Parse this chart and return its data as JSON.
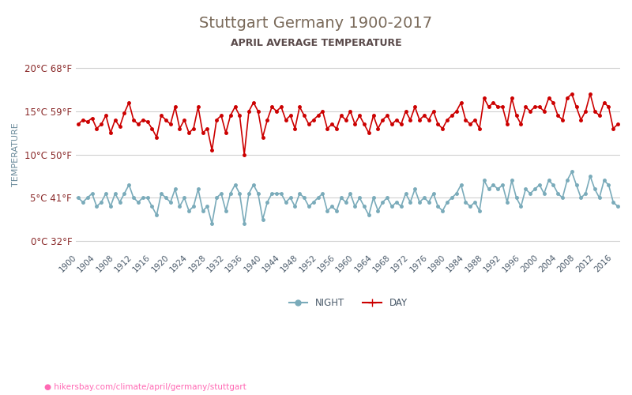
{
  "title": "Stuttgart Germany 1900-2017",
  "subtitle": "APRIL AVERAGE TEMPERATURE",
  "ylabel": "TEMPERATURE",
  "url_text": "hikersbay.com/climate/april/germany/stuttgart",
  "years": [
    1900,
    1901,
    1902,
    1903,
    1904,
    1905,
    1906,
    1907,
    1908,
    1909,
    1910,
    1911,
    1912,
    1913,
    1914,
    1915,
    1916,
    1917,
    1918,
    1919,
    1920,
    1921,
    1922,
    1923,
    1924,
    1925,
    1926,
    1927,
    1928,
    1929,
    1930,
    1931,
    1932,
    1933,
    1934,
    1935,
    1936,
    1937,
    1938,
    1939,
    1940,
    1941,
    1942,
    1943,
    1944,
    1945,
    1946,
    1947,
    1948,
    1949,
    1950,
    1951,
    1952,
    1953,
    1954,
    1955,
    1956,
    1957,
    1958,
    1959,
    1960,
    1961,
    1962,
    1963,
    1964,
    1965,
    1966,
    1967,
    1968,
    1969,
    1970,
    1971,
    1972,
    1973,
    1974,
    1975,
    1976,
    1977,
    1978,
    1979,
    1980,
    1981,
    1982,
    1983,
    1984,
    1985,
    1986,
    1987,
    1988,
    1989,
    1990,
    1991,
    1992,
    1993,
    1994,
    1995,
    1996,
    1997,
    1998,
    1999,
    2000,
    2001,
    2002,
    2003,
    2004,
    2005,
    2006,
    2007,
    2008,
    2009,
    2010,
    2011,
    2012,
    2013,
    2014,
    2015,
    2016,
    2017
  ],
  "day_temps": [
    13.5,
    14.0,
    13.8,
    14.2,
    13.0,
    13.5,
    14.5,
    12.5,
    14.0,
    13.2,
    14.8,
    16.0,
    14.0,
    13.5,
    14.0,
    13.8,
    13.0,
    12.0,
    14.5,
    14.0,
    13.5,
    15.5,
    13.0,
    14.0,
    12.5,
    13.0,
    15.5,
    12.5,
    13.0,
    10.5,
    14.0,
    14.5,
    12.5,
    14.5,
    15.5,
    14.5,
    10.0,
    15.0,
    16.0,
    15.0,
    12.0,
    14.0,
    15.5,
    15.0,
    15.5,
    14.0,
    14.5,
    13.0,
    15.5,
    14.5,
    13.5,
    14.0,
    14.5,
    15.0,
    13.0,
    13.5,
    13.0,
    14.5,
    14.0,
    15.0,
    13.5,
    14.5,
    13.5,
    12.5,
    14.5,
    13.0,
    14.0,
    14.5,
    13.5,
    14.0,
    13.5,
    15.0,
    14.0,
    15.5,
    14.0,
    14.5,
    14.0,
    15.0,
    13.5,
    13.0,
    14.0,
    14.5,
    15.0,
    16.0,
    14.0,
    13.5,
    14.0,
    13.0,
    16.5,
    15.5,
    16.0,
    15.5,
    15.5,
    13.5,
    16.5,
    14.5,
    13.5,
    15.5,
    15.0,
    15.5,
    15.5,
    15.0,
    16.5,
    16.0,
    14.5,
    14.0,
    16.5,
    17.0,
    15.5,
    14.0,
    15.0,
    17.0,
    15.0,
    14.5,
    16.0,
    15.5,
    13.0,
    13.5
  ],
  "night_temps": [
    5.0,
    4.5,
    5.0,
    5.5,
    4.0,
    4.5,
    5.5,
    4.0,
    5.5,
    4.5,
    5.5,
    6.5,
    5.0,
    4.5,
    5.0,
    5.0,
    4.0,
    3.0,
    5.5,
    5.0,
    4.5,
    6.0,
    4.0,
    5.0,
    3.5,
    4.0,
    6.0,
    3.5,
    4.0,
    2.0,
    5.0,
    5.5,
    3.5,
    5.5,
    6.5,
    5.5,
    2.0,
    5.5,
    6.5,
    5.5,
    2.5,
    4.5,
    5.5,
    5.5,
    5.5,
    4.5,
    5.0,
    4.0,
    5.5,
    5.0,
    4.0,
    4.5,
    5.0,
    5.5,
    3.5,
    4.0,
    3.5,
    5.0,
    4.5,
    5.5,
    4.0,
    5.0,
    4.0,
    3.0,
    5.0,
    3.5,
    4.5,
    5.0,
    4.0,
    4.5,
    4.0,
    5.5,
    4.5,
    6.0,
    4.5,
    5.0,
    4.5,
    5.5,
    4.0,
    3.5,
    4.5,
    5.0,
    5.5,
    6.5,
    4.5,
    4.0,
    4.5,
    3.5,
    7.0,
    6.0,
    6.5,
    6.0,
    6.5,
    4.5,
    7.0,
    5.0,
    4.0,
    6.0,
    5.5,
    6.0,
    6.5,
    5.5,
    7.0,
    6.5,
    5.5,
    5.0,
    7.0,
    8.0,
    6.5,
    5.0,
    5.5,
    7.5,
    6.0,
    5.0,
    7.0,
    6.5,
    4.5,
    4.0
  ],
  "ylim_min": -1,
  "ylim_max": 21,
  "yticks_c": [
    0,
    5,
    10,
    15,
    20
  ],
  "yticks_f": [
    32,
    41,
    50,
    59,
    68
  ],
  "xtick_step": 4,
  "day_color": "#cc0000",
  "night_color": "#7aabba",
  "title_color": "#7a6a5a",
  "subtitle_color": "#5a4a4a",
  "ylabel_color": "#6a8a9a",
  "tick_color": "#8a2a2a",
  "grid_color": "#d0d0d0",
  "background_color": "#ffffff",
  "url_color": "#ff69b4",
  "legend_night_color": "#7aabba",
  "legend_day_color": "#cc0000"
}
